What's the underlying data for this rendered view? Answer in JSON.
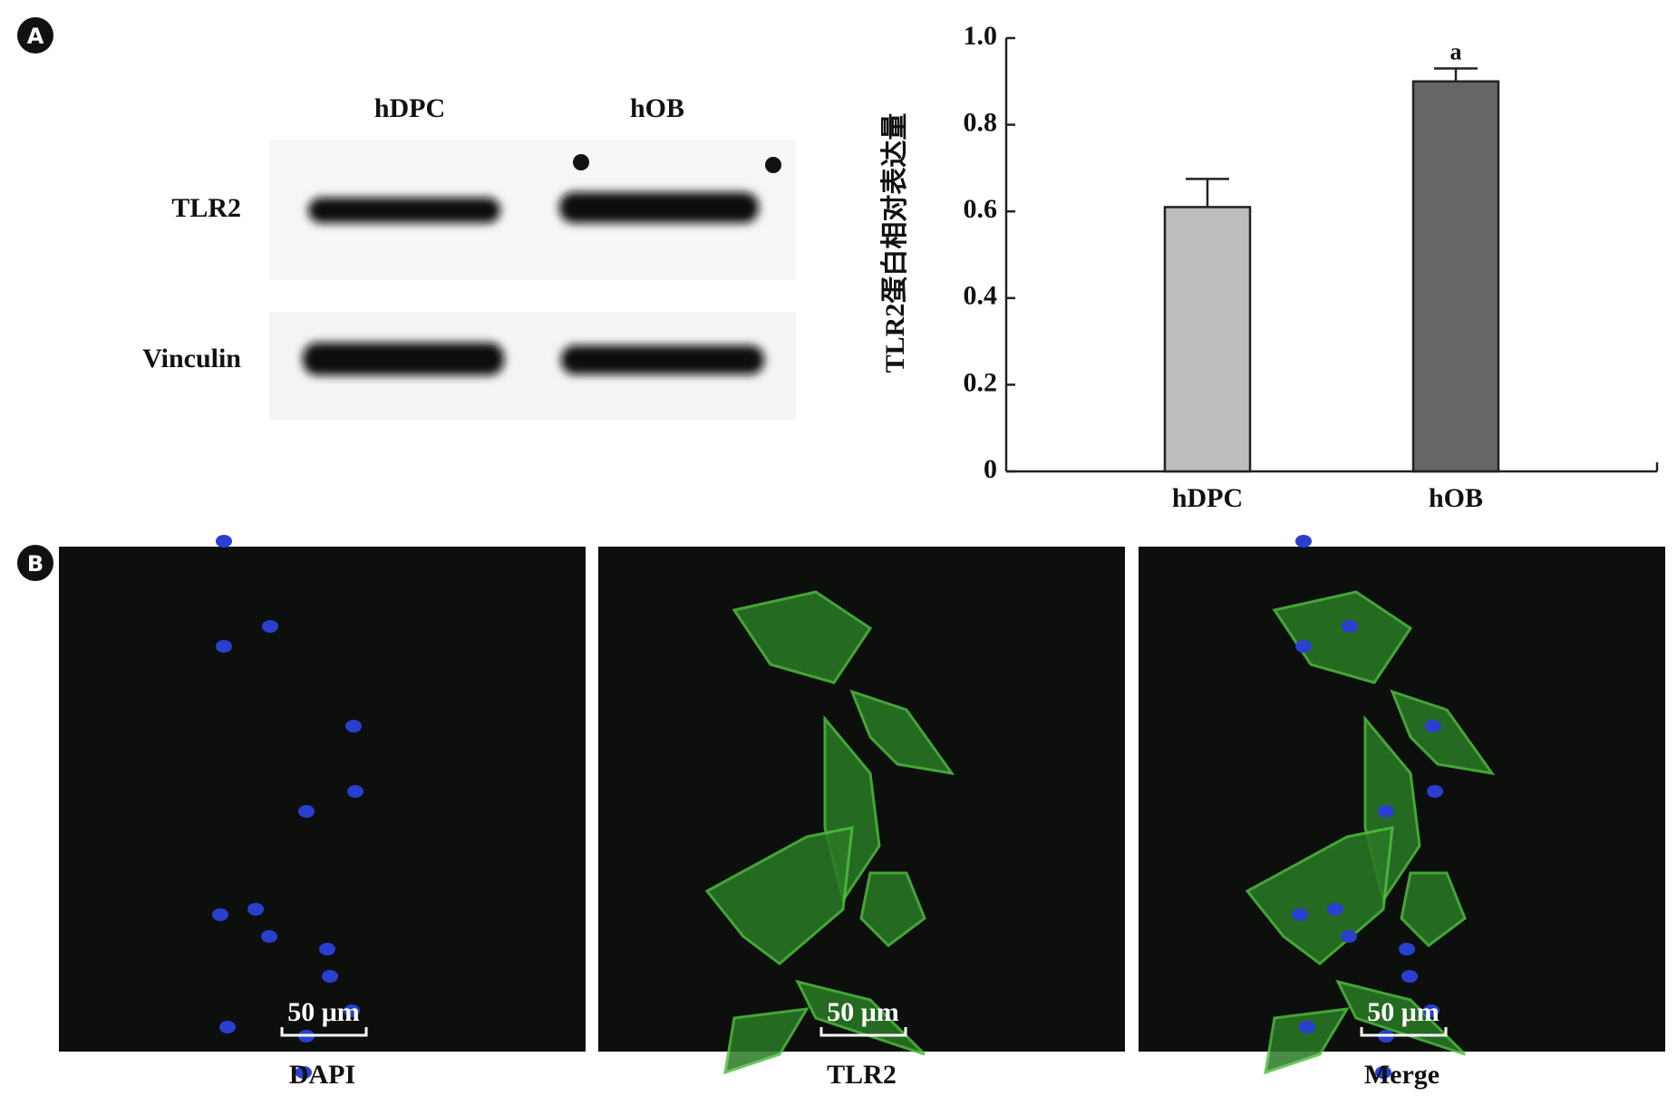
{
  "panels": {
    "a": "A",
    "b": "B"
  },
  "blot": {
    "lanes": [
      "hDPC",
      "hOB"
    ],
    "rows": [
      "TLR2",
      "Vinculin"
    ]
  },
  "chart_data": {
    "type": "bar",
    "ylabel": "TLR2蛋白相对表达量",
    "categories": [
      "hDPC",
      "hOB"
    ],
    "values": [
      0.61,
      0.9
    ],
    "errors": [
      0.065,
      0.03
    ],
    "colors": [
      "#bdbdbd",
      "#666666"
    ],
    "annotation": {
      "text": "a",
      "bar": 1
    },
    "ylim": [
      0,
      1
    ],
    "yticks": [
      0,
      0.2,
      0.4,
      0.6,
      0.8,
      {
        "value": 1,
        "label": "1.0"
      }
    ],
    "grid": false
  },
  "microscopy": {
    "panels": [
      {
        "label": "DAPI",
        "scale_bar": "50 μm"
      },
      {
        "label": "TLR2",
        "scale_bar": "50 μm"
      },
      {
        "label": "Merge",
        "scale_bar": "50 μm"
      }
    ]
  }
}
